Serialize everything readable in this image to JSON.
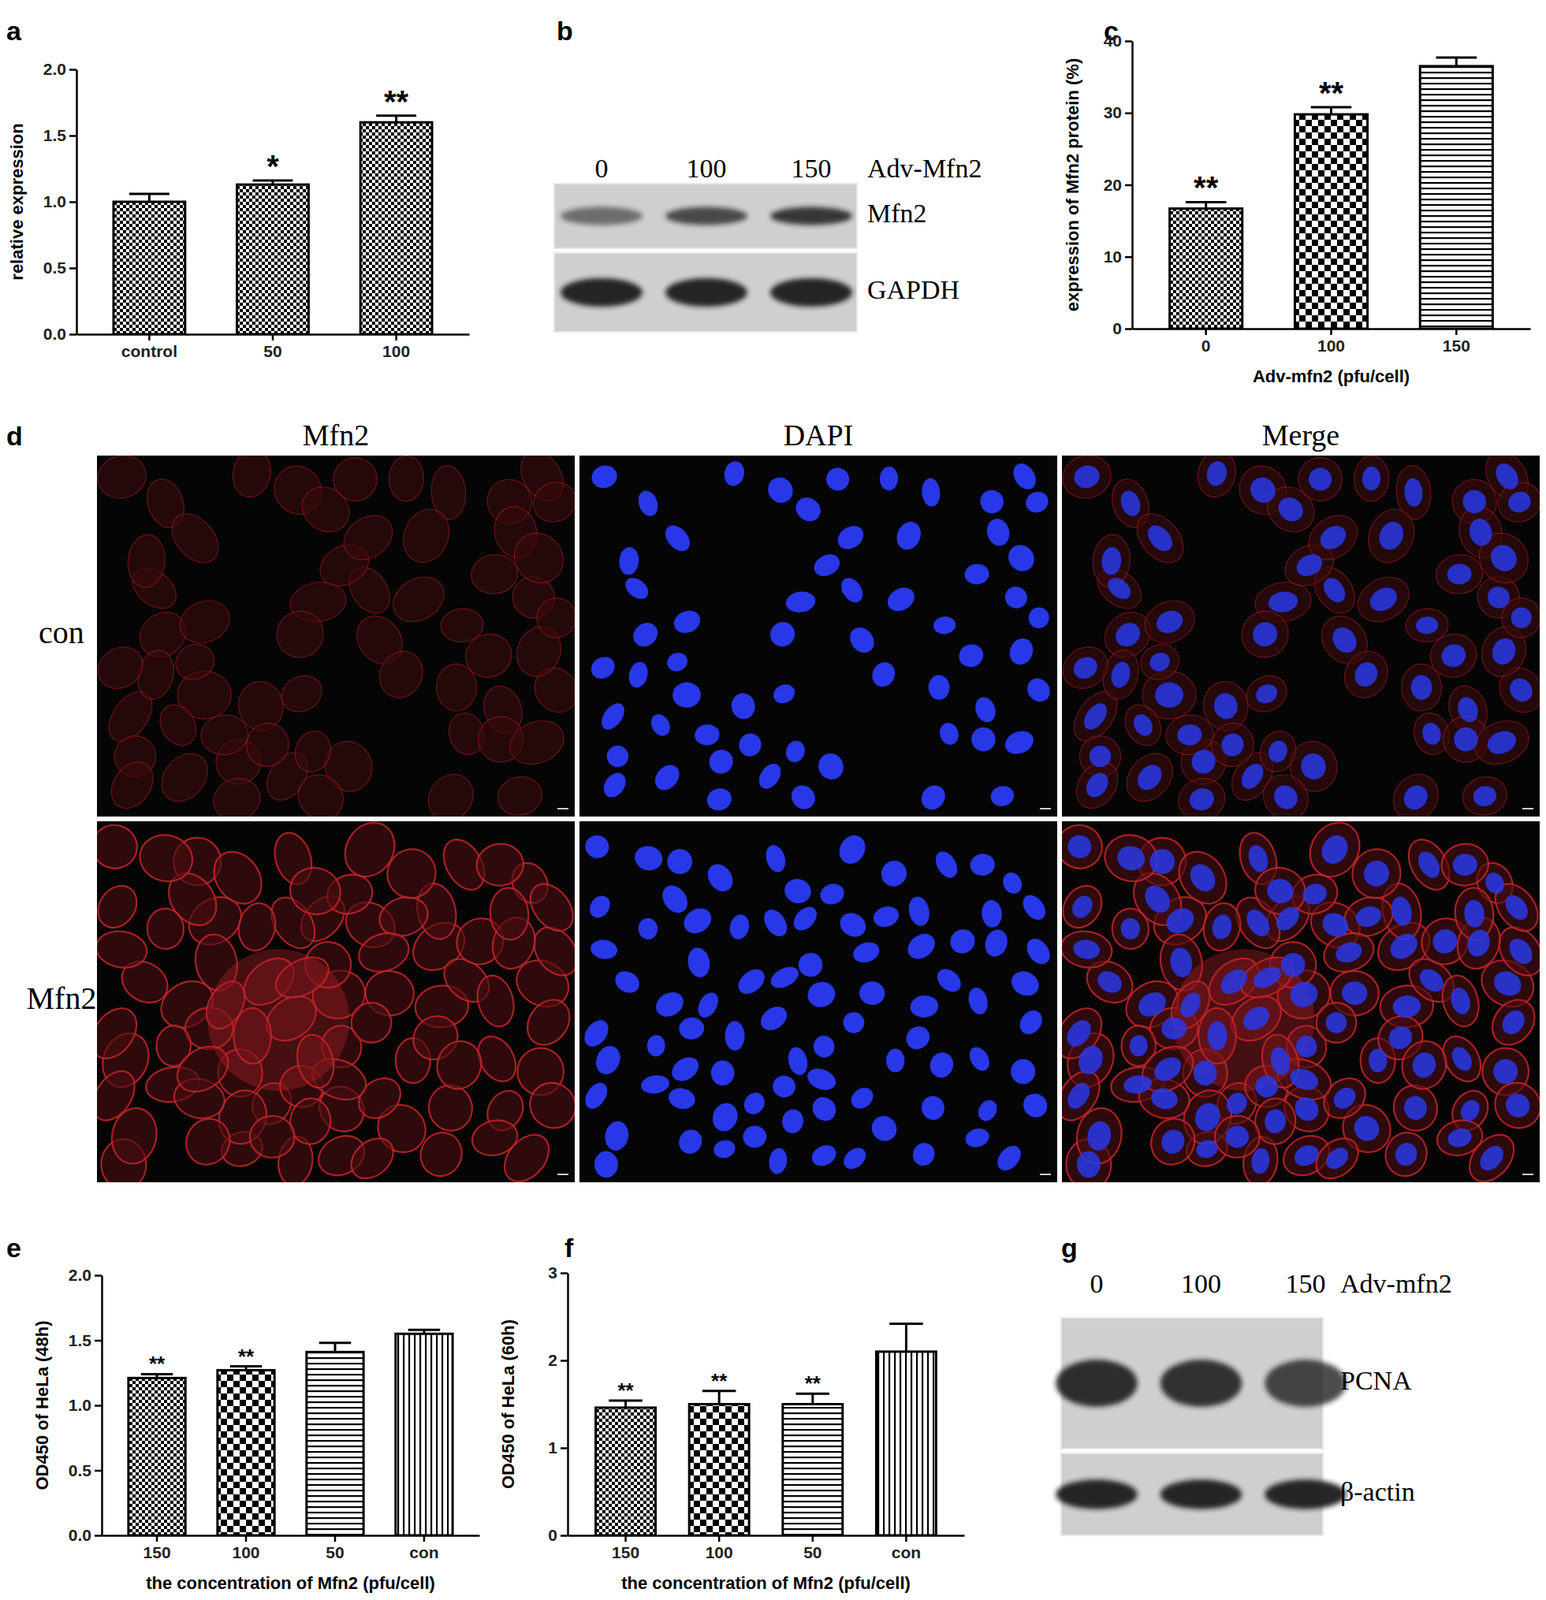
{
  "chart_data": [
    {
      "type": "bar",
      "categories": [
        "control",
        "50",
        "100"
      ],
      "values": [
        1.0,
        1.13,
        1.6
      ],
      "error": [
        0.06,
        0.03,
        0.05
      ],
      "significance": [
        null,
        "*",
        "**"
      ],
      "ylabel": "relative expression",
      "ylim": [
        0,
        2.0
      ],
      "yticks": [
        {
          "value": 0,
          "label": "0.0"
        },
        {
          "value": 0.5,
          "label": "0.5"
        },
        {
          "value": 1.0,
          "label": "1.0"
        },
        {
          "value": 1.5,
          "label": "1.5"
        },
        {
          "value": 2.0,
          "label": "2.0"
        }
      ],
      "color": "#000000"
    },
    {
      "type": "bar",
      "categories": [
        "0",
        "100",
        "150"
      ],
      "values": [
        16.7,
        29.8,
        36.5
      ],
      "error": [
        0.9,
        1.0,
        1.2
      ],
      "significance": [
        "**",
        "**",
        null
      ],
      "xlabel": "Adv-mfn2 (pfu/cell)",
      "ylabel": "expression of Mfn2 protein (%)",
      "ylim": [
        0,
        40
      ],
      "yticks": [
        0,
        10,
        20,
        30,
        40
      ],
      "color": "#000000"
    },
    {
      "type": "bar",
      "categories": [
        "150",
        "100",
        "50",
        "con"
      ],
      "values": [
        1.21,
        1.27,
        1.41,
        1.55
      ],
      "error": [
        0.03,
        0.03,
        0.07,
        0.03
      ],
      "significance": [
        "**",
        "**",
        null,
        null
      ],
      "xlabel": "the concentration of Mfn2 (pfu/cell)",
      "ylabel": "OD450 of HeLa (48h)",
      "ylim": [
        0,
        2.0
      ],
      "yticks": [
        {
          "value": 0,
          "label": "0.0"
        },
        {
          "value": 0.5,
          "label": "0.5"
        },
        {
          "value": 1.0,
          "label": "1.0"
        },
        {
          "value": 1.5,
          "label": "1.5"
        },
        {
          "value": 2.0,
          "label": "2.0"
        }
      ],
      "color": "#000000"
    },
    {
      "type": "bar",
      "categories": [
        "150",
        "100",
        "50",
        "con"
      ],
      "values": [
        1.46,
        1.5,
        1.5,
        2.1
      ],
      "error": [
        0.08,
        0.15,
        0.12,
        0.32
      ],
      "significance": [
        "**",
        "**",
        "**",
        null
      ],
      "xlabel": "the concentration of Mfn2 (pfu/cell)",
      "ylabel": "OD450 of HeLa (60h)",
      "ylim": [
        0,
        3
      ],
      "yticks": [
        0,
        1,
        2,
        3
      ],
      "color": "#000000"
    }
  ],
  "panel_labels": [
    "a",
    "b",
    "c",
    "d",
    "e",
    "f",
    "g"
  ],
  "blots": [
    {
      "lanes_title": "Adv-Mfn2",
      "lanes": [
        "0",
        "100",
        "150"
      ],
      "bands": [
        {
          "label": "Mfn2",
          "intensity": [
            0.55,
            0.75,
            0.85
          ]
        },
        {
          "label": "GAPDH",
          "intensity": [
            0.95,
            0.95,
            0.95
          ]
        }
      ]
    },
    {
      "lanes_title": "Adv-mfn2",
      "lanes": [
        "0",
        "100",
        "150"
      ],
      "bands": [
        {
          "label": "PCNA",
          "intensity": [
            0.9,
            0.88,
            0.78
          ]
        },
        {
          "label": "β-actin",
          "intensity": [
            0.95,
            0.95,
            0.95
          ]
        }
      ]
    }
  ],
  "microscopy": {
    "columns": [
      "Mfn2",
      "DAPI",
      "Merge"
    ],
    "rows": [
      "con",
      "Mfn2"
    ]
  }
}
